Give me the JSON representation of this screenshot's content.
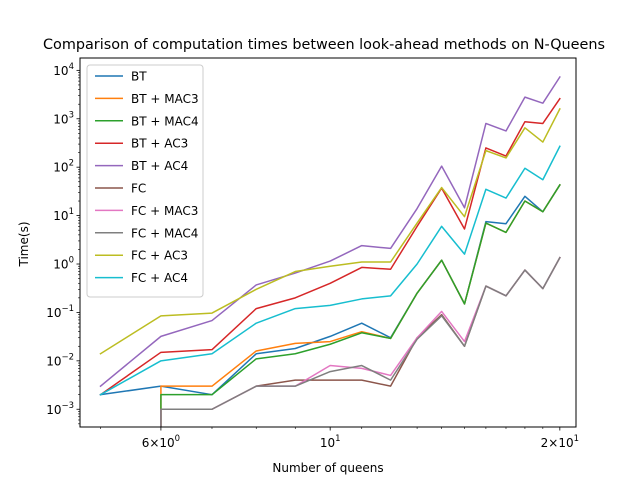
{
  "chart_data": {
    "type": "line",
    "title": "Comparison of computation times between look-ahead methods on N-Queens",
    "xlabel": "Number of queens",
    "ylabel": "Time(s)",
    "xscale": "log",
    "yscale": "log",
    "xlim": [
      4.7,
      21.0
    ],
    "ylim": [
      0.00043,
      18000
    ],
    "x_tick_labels": [
      {
        "value": 6,
        "mantissa": "6",
        "exp": "0"
      },
      {
        "value": 10,
        "mantissa": "10",
        "exp": "1"
      },
      {
        "value": 20,
        "mantissa": "2",
        "exp": "1"
      }
    ],
    "y_tick_labels": [
      {
        "value": 0.001,
        "exp": "−3"
      },
      {
        "value": 0.01,
        "exp": "−2"
      },
      {
        "value": 0.1,
        "exp": "−1"
      },
      {
        "value": 1,
        "exp": "0"
      },
      {
        "value": 10,
        "exp": "1"
      },
      {
        "value": 100,
        "exp": "2"
      },
      {
        "value": 1000,
        "exp": "3"
      },
      {
        "value": 10000,
        "exp": "4"
      }
    ],
    "legend_position": "top-left",
    "grid": false,
    "x": [
      5,
      6,
      7,
      8,
      9,
      10,
      11,
      12,
      13,
      14,
      15,
      16,
      17,
      18,
      19,
      20
    ],
    "series": [
      {
        "name": "BT",
        "color": "#1f77b4",
        "values": [
          0.002,
          0.003,
          0.002,
          0.014,
          0.018,
          0.032,
          0.06,
          0.03,
          0.25,
          1.2,
          0.15,
          7.5,
          6.8,
          25,
          12,
          43
        ]
      },
      {
        "name": "BT + MAC3",
        "color": "#ff7f0e",
        "values": [
          null,
          0.003,
          0.003,
          0.016,
          0.023,
          0.025,
          0.04,
          0.029,
          0.25,
          1.2,
          0.15,
          7.0,
          4.5,
          20,
          12,
          43
        ]
      },
      {
        "name": "BT + MAC4",
        "color": "#2ca02c",
        "values": [
          null,
          0.002,
          0.002,
          0.011,
          0.014,
          0.022,
          0.038,
          0.029,
          0.25,
          1.2,
          0.15,
          7.0,
          4.5,
          20,
          12,
          43
        ]
      },
      {
        "name": "BT + AC3",
        "color": "#d62728",
        "values": [
          0.002,
          0.015,
          0.017,
          0.12,
          0.2,
          0.4,
          0.85,
          0.78,
          6,
          37,
          5.3,
          250,
          170,
          870,
          800,
          2600
        ]
      },
      {
        "name": "BT + AC4",
        "color": "#9467bd",
        "values": [
          0.003,
          0.032,
          0.068,
          0.37,
          0.65,
          1.15,
          2.4,
          2.1,
          14,
          105,
          14.5,
          800,
          560,
          2800,
          2100,
          7300
        ]
      },
      {
        "name": "FC",
        "color": "#8c564b",
        "values": [
          null,
          0.001,
          0.001,
          0.003,
          0.004,
          0.004,
          0.004,
          0.003,
          0.03,
          0.09,
          0.02,
          0.35,
          0.22,
          0.75,
          0.31,
          1.35
        ]
      },
      {
        "name": "FC + MAC3",
        "color": "#e377c2",
        "values": [
          null,
          0.001,
          0.001,
          0.003,
          0.003,
          0.008,
          0.007,
          0.005,
          0.03,
          0.105,
          0.025,
          0.35,
          0.22,
          0.75,
          0.31,
          1.35
        ]
      },
      {
        "name": "FC + MAC4",
        "color": "#7f7f7f",
        "values": [
          null,
          0.001,
          0.001,
          0.003,
          0.003,
          0.006,
          0.008,
          0.004,
          0.028,
          0.085,
          0.02,
          0.35,
          0.22,
          0.75,
          0.31,
          1.35
        ]
      },
      {
        "name": "FC + AC3",
        "color": "#bcbd22",
        "values": [
          0.014,
          0.085,
          0.097,
          0.3,
          0.7,
          0.9,
          1.1,
          1.1,
          7,
          38,
          9.5,
          220,
          155,
          650,
          330,
          1600
        ]
      },
      {
        "name": "FC + AC4",
        "color": "#17becf",
        "values": [
          0.002,
          0.01,
          0.014,
          0.06,
          0.12,
          0.14,
          0.19,
          0.22,
          1.0,
          6,
          1.6,
          35,
          23,
          95,
          55,
          270
        ]
      }
    ]
  }
}
